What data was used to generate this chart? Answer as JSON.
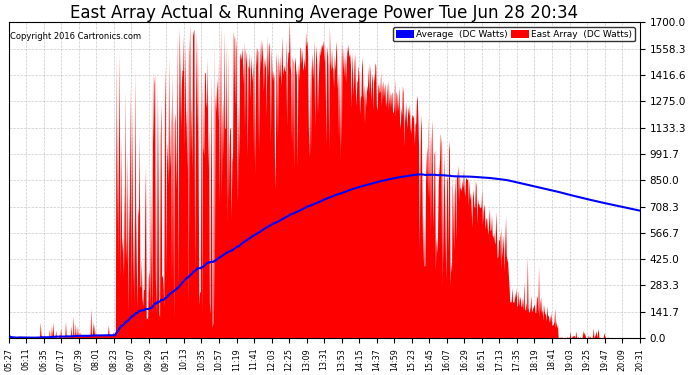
{
  "title": "East Array Actual & Running Average Power Tue Jun 28 20:34",
  "copyright": "Copyright 2016 Cartronics.com",
  "legend_avg": "Average  (DC Watts)",
  "legend_east": "East Array  (DC Watts)",
  "ylim": [
    0,
    1700.0
  ],
  "yticks": [
    0.0,
    141.7,
    283.3,
    425.0,
    566.7,
    708.3,
    850.0,
    991.7,
    1133.3,
    1275.0,
    1416.6,
    1558.3,
    1700.0
  ],
  "background_color": "#ffffff",
  "grid_color": "#aaaaaa",
  "red_color": "#ff0000",
  "blue_color": "#0000ff",
  "title_fontsize": 12,
  "xtick_labels": [
    "05:27",
    "06:11",
    "06:35",
    "07:17",
    "07:39",
    "08:01",
    "08:23",
    "09:07",
    "09:29",
    "09:51",
    "10:13",
    "10:35",
    "10:57",
    "11:19",
    "11:41",
    "12:03",
    "12:25",
    "13:09",
    "13:31",
    "13:53",
    "14:15",
    "14:37",
    "14:59",
    "15:23",
    "15:45",
    "16:07",
    "16:29",
    "16:51",
    "17:13",
    "17:35",
    "18:19",
    "18:41",
    "19:03",
    "19:25",
    "19:47",
    "20:09",
    "20:31"
  ]
}
